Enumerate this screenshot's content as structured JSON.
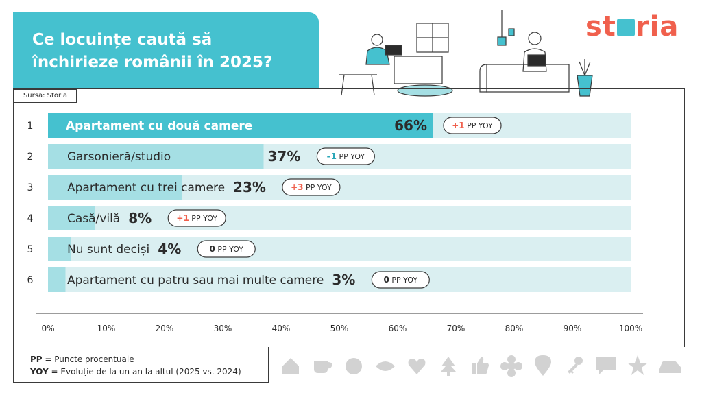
{
  "title": "Ce locuințe caută să\nînchirieze românii în 2025?",
  "source": "Sursa: Storia",
  "logo": {
    "text_start": "st",
    "text_end": "ria",
    "accent": "#45c1cf",
    "brand": "#f0604d"
  },
  "chart_data": {
    "type": "bar",
    "orientation": "horizontal",
    "title": "Ce locuințe caută să închirieze românii în 2025?",
    "xlabel": "",
    "ylabel": "",
    "xlim": [
      0,
      100
    ],
    "ticks": [
      "0%",
      "10%",
      "20%",
      "30%",
      "40%",
      "50%",
      "60%",
      "70%",
      "80%",
      "90%",
      "100%"
    ],
    "grid": false,
    "categories": [
      {
        "rank": "1",
        "label": "Apartament cu două camere",
        "value": 66,
        "value_label": "66%",
        "delta": "+1",
        "delta_color": "#f0604d",
        "unit": "PP YOY"
      },
      {
        "rank": "2",
        "label": "Garsonieră/studio",
        "value": 37,
        "value_label": "37%",
        "delta": "–1",
        "delta_color": "#2aa7b8",
        "unit": "PP YOY"
      },
      {
        "rank": "3",
        "label": "Apartament cu trei camere",
        "value": 23,
        "value_label": "23%",
        "delta": "+3",
        "delta_color": "#f0604d",
        "unit": "PP YOY"
      },
      {
        "rank": "4",
        "label": "Casă/vilă",
        "value": 8,
        "value_label": "8%",
        "delta": "+1",
        "delta_color": "#f0604d",
        "unit": "PP YOY"
      },
      {
        "rank": "5",
        "label": "Nu sunt deciși",
        "value": 4,
        "value_label": "4%",
        "delta": "0",
        "delta_color": "#2b2b2b",
        "unit": "PP YOY"
      },
      {
        "rank": "6",
        "label": "Apartament cu patru sau mai multe camere",
        "value": 3,
        "value_label": "3%",
        "delta": "0",
        "delta_color": "#2b2b2b",
        "unit": "PP YOY"
      }
    ],
    "colors": {
      "highlight": "#45c1cf",
      "bar": "#a5dfe4",
      "track": "#daeff1"
    }
  },
  "legend": [
    {
      "key": "PP",
      "text": " = Puncte procentuale"
    },
    {
      "key": "YOY",
      "text": " = Evoluție de la un an la altul (2025 vs. 2024)"
    }
  ],
  "icons": [
    "house-icon",
    "cup-icon",
    "smiley-icon",
    "eye-icon",
    "heart-icon",
    "tree-icon",
    "thumbs-up-icon",
    "flower-icon",
    "location-pin-icon",
    "key-icon",
    "speech-bubble-icon",
    "star-icon",
    "car-icon"
  ]
}
